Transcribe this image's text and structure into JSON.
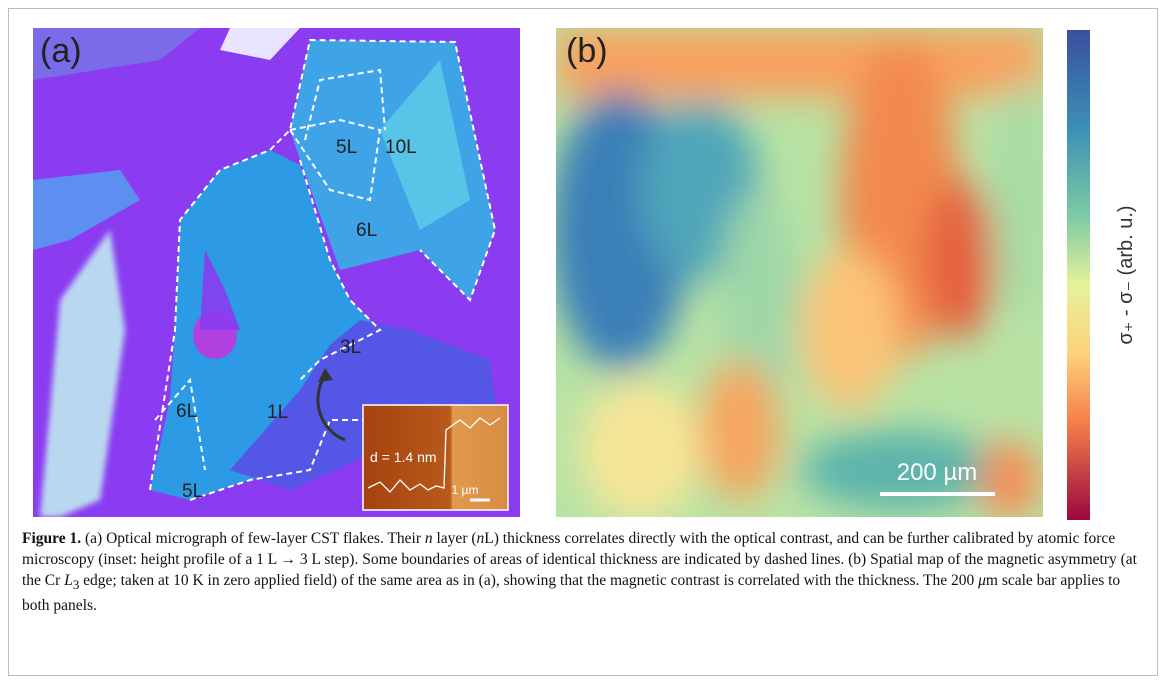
{
  "figure": {
    "panel_a": {
      "label": "(a)",
      "regions": [
        "5L",
        "10L",
        "6L",
        "3L",
        "6L",
        "1L",
        "5L"
      ],
      "inset": {
        "thickness": "d = 1.4 nm",
        "scale": "1 µm"
      }
    },
    "panel_b": {
      "label": "(b)",
      "scale_bar": "200 µm"
    },
    "colorbar": {
      "label": "σ₊ - σ₋ (arb. u.)"
    },
    "caption": {
      "label": "Figure 1.",
      "parts": [
        "(a) Optical micrograph of few-layer CST flakes. Their ",
        "n",
        " layer (",
        "n",
        "L) thickness correlates directly with the optical contrast, and can be further calibrated by atomic force microscopy (inset: height profile of a 1 L → 3 L step). Some boundaries of areas of identical thickness are indicated by dashed lines. (b) Spatial map of the magnetic asymmetry (at the Cr ",
        "L",
        "3",
        " edge; taken at 10 K in zero applied field) of the same area as in (a), showing that the magnetic contrast is correlated with the thickness. The 200 ",
        "μ",
        "m scale bar applies to both panels."
      ]
    }
  }
}
